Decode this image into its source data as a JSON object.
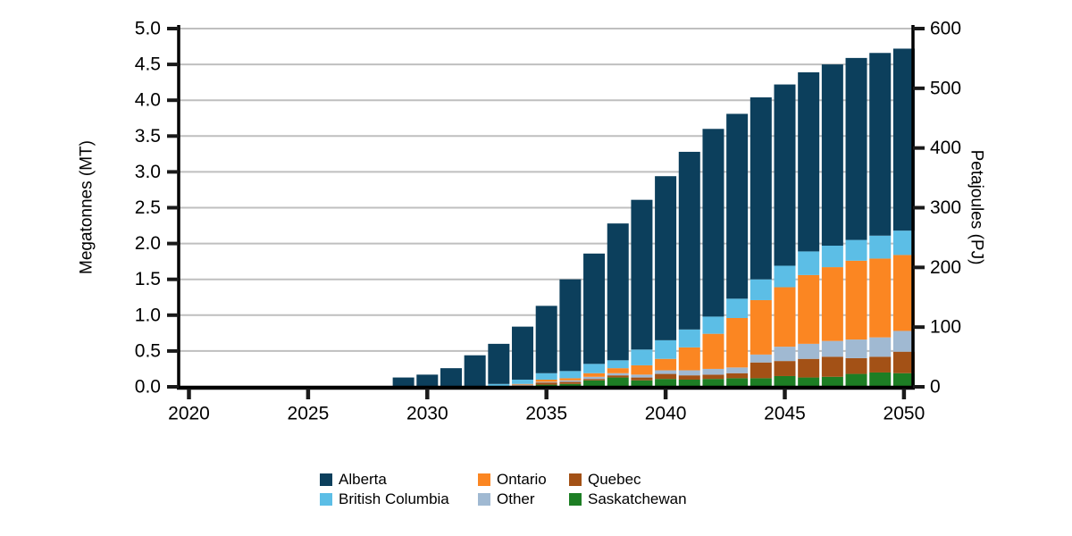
{
  "chart_data": {
    "type": "bar",
    "stacked": true,
    "title": "",
    "x": [
      2029,
      2030,
      2031,
      2032,
      2033,
      2034,
      2035,
      2036,
      2037,
      2038,
      2039,
      2040,
      2041,
      2042,
      2043,
      2044,
      2045,
      2046,
      2047,
      2048,
      2049,
      2050
    ],
    "series": [
      {
        "name": "Alberta",
        "color": "#0c3f5c",
        "values": [
          0.13,
          0.17,
          0.26,
          0.43,
          0.56,
          0.74,
          0.94,
          1.28,
          1.54,
          1.91,
          2.09,
          2.29,
          2.48,
          2.62,
          2.58,
          2.54,
          2.53,
          2.5,
          2.53,
          2.54,
          2.55,
          2.54
        ]
      },
      {
        "name": "British Columbia",
        "color": "#5cbee6",
        "values": [
          0,
          0,
          0,
          0.01,
          0.04,
          0.06,
          0.09,
          0.1,
          0.13,
          0.11,
          0.22,
          0.26,
          0.25,
          0.24,
          0.27,
          0.29,
          0.3,
          0.33,
          0.3,
          0.29,
          0.32,
          0.34
        ]
      },
      {
        "name": "Ontario",
        "color": "#fb8622",
        "values": [
          0,
          0,
          0,
          0,
          0,
          0.01,
          0.03,
          0.03,
          0.05,
          0.07,
          0.13,
          0.16,
          0.32,
          0.49,
          0.69,
          0.76,
          0.83,
          0.96,
          1.03,
          1.1,
          1.1,
          1.06
        ]
      },
      {
        "name": "Other",
        "color": "#a0b9d2",
        "values": [
          0,
          0,
          0,
          0,
          0,
          0.01,
          0.01,
          0.02,
          0.03,
          0.03,
          0.04,
          0.05,
          0.07,
          0.08,
          0.08,
          0.11,
          0.2,
          0.21,
          0.22,
          0.26,
          0.27,
          0.29
        ]
      },
      {
        "name": "Quebec",
        "color": "#a35116",
        "values": [
          0,
          0,
          0,
          0,
          0,
          0.01,
          0.03,
          0.03,
          0.02,
          0.03,
          0.04,
          0.07,
          0.06,
          0.06,
          0.07,
          0.22,
          0.21,
          0.26,
          0.28,
          0.22,
          0.22,
          0.3
        ]
      },
      {
        "name": "Saskatchewan",
        "color": "#1d7e24",
        "values": [
          0,
          0,
          0,
          0,
          0,
          0.01,
          0.03,
          0.04,
          0.09,
          0.13,
          0.09,
          0.11,
          0.1,
          0.11,
          0.12,
          0.12,
          0.15,
          0.13,
          0.14,
          0.18,
          0.2,
          0.19
        ]
      }
    ],
    "stack_order_bottom_to_top": [
      "Saskatchewan",
      "Quebec",
      "Other",
      "Ontario",
      "British Columbia",
      "Alberta"
    ],
    "left_axis": {
      "label": "Megatonnes (MT)",
      "min": 0,
      "max": 5,
      "tick_labels": [
        "0.0",
        "0.5",
        "1.0",
        "1.5",
        "2.0",
        "2.5",
        "3.0",
        "3.5",
        "4.0",
        "4.5",
        "5.0"
      ]
    },
    "right_axis": {
      "label": "Petajoules (PJ)",
      "min": 0,
      "max": 600,
      "tick_labels": [
        "0",
        "100",
        "200",
        "300",
        "400",
        "500",
        "600"
      ],
      "pj_per_mt": 120
    },
    "x_axis": {
      "min": 2020,
      "max": 2050,
      "tick_labels": [
        "2020",
        "2025",
        "2030",
        "2035",
        "2040",
        "2045",
        "2050"
      ]
    },
    "grid": "horizontal",
    "legend_position": "bottom",
    "style": {
      "grid_color": "#bfbfbf",
      "axis_color": "#000000",
      "tick_color": "#1a1a1a",
      "background": "#ffffff"
    }
  }
}
